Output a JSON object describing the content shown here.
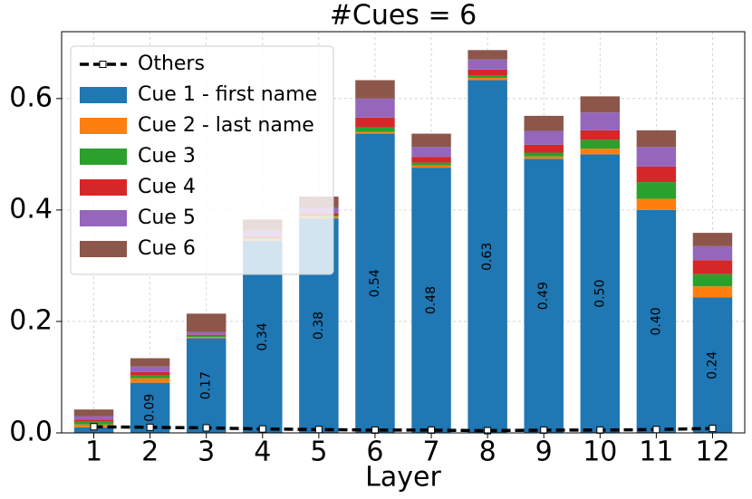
{
  "chart_data": {
    "type": "stacked_bar",
    "title": "#Cues = 6",
    "x_label": "Layer",
    "categories": [
      "1",
      "2",
      "3",
      "4",
      "5",
      "6",
      "7",
      "8",
      "9",
      "10",
      "11",
      "12"
    ],
    "ylim": [
      0,
      0.72
    ],
    "yticks": [
      {
        "value": 0,
        "label": "0.0"
      },
      0.2,
      0.4,
      0.6
    ],
    "grid": true,
    "legend": "upper left",
    "series": [
      {
        "name": "Others",
        "kind": "line",
        "color": "#000000",
        "values": [
          0.011,
          0.01,
          0.009,
          0.007,
          0.006,
          0.005,
          0.005,
          0.004,
          0.005,
          0.005,
          0.006,
          0.008
        ]
      },
      {
        "name": "Cue 1 - first name",
        "color": "#1f77b4",
        "values": [
          0.01,
          0.09,
          0.17,
          0.345,
          0.385,
          0.537,
          0.476,
          0.633,
          0.492,
          0.5,
          0.4,
          0.243
        ],
        "value_labels": [
          null,
          "0.09",
          "0.17",
          "0.34",
          "0.38",
          "0.54",
          "0.48",
          "0.63",
          "0.49",
          "0.50",
          "0.40",
          "0.24"
        ]
      },
      {
        "name": "Cue 2 - last name",
        "color": "#ff7f0e",
        "values": [
          0.005,
          0.008,
          0.002,
          0.003,
          0.003,
          0.003,
          0.004,
          0.004,
          0.004,
          0.01,
          0.02,
          0.02
        ]
      },
      {
        "name": "Cue 3",
        "color": "#2ca02c",
        "values": [
          0.005,
          0.006,
          0.002,
          0.002,
          0.002,
          0.008,
          0.005,
          0.005,
          0.007,
          0.016,
          0.03,
          0.022
        ]
      },
      {
        "name": "Cue 4",
        "color": "#d62728",
        "values": [
          0.004,
          0.005,
          0.002,
          0.003,
          0.004,
          0.018,
          0.01,
          0.01,
          0.014,
          0.017,
          0.028,
          0.025
        ]
      },
      {
        "name": "Cue 5",
        "color": "#9467bd",
        "values": [
          0.006,
          0.01,
          0.005,
          0.01,
          0.01,
          0.034,
          0.018,
          0.018,
          0.025,
          0.032,
          0.035,
          0.025
        ]
      },
      {
        "name": "Cue 6",
        "color": "#8c564b",
        "values": [
          0.012,
          0.015,
          0.033,
          0.02,
          0.02,
          0.033,
          0.024,
          0.017,
          0.027,
          0.029,
          0.03,
          0.024
        ]
      }
    ]
  }
}
